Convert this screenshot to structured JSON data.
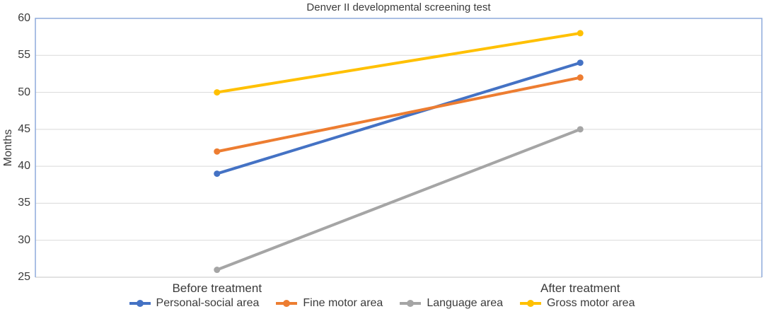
{
  "chart_data": {
    "type": "line",
    "title": "Denver II developmental screening test",
    "ylabel": "Months",
    "xlabel": "",
    "categories": [
      "Before treatment",
      "After treatment"
    ],
    "series": [
      {
        "name": "Personal-social area",
        "color": "#4472C4",
        "values": [
          39,
          54
        ]
      },
      {
        "name": "Fine motor area",
        "color": "#ED7D31",
        "values": [
          42,
          52
        ]
      },
      {
        "name": "Language area",
        "color": "#A5A5A5",
        "values": [
          26,
          45
        ]
      },
      {
        "name": "Gross motor area",
        "color": "#FFC000",
        "values": [
          50,
          58
        ]
      }
    ],
    "ylim": [
      25,
      60
    ],
    "yticks": [
      60,
      55,
      50,
      45,
      40,
      35,
      30,
      25
    ],
    "grid": true,
    "legend_position": "bottom"
  },
  "colors": {
    "plot_border": "#8EAADB",
    "gridline": "#D9D9D9",
    "bottom_axis": "#D9D9D9",
    "text": "#3B3B3B",
    "background": "#FFFFFF"
  }
}
